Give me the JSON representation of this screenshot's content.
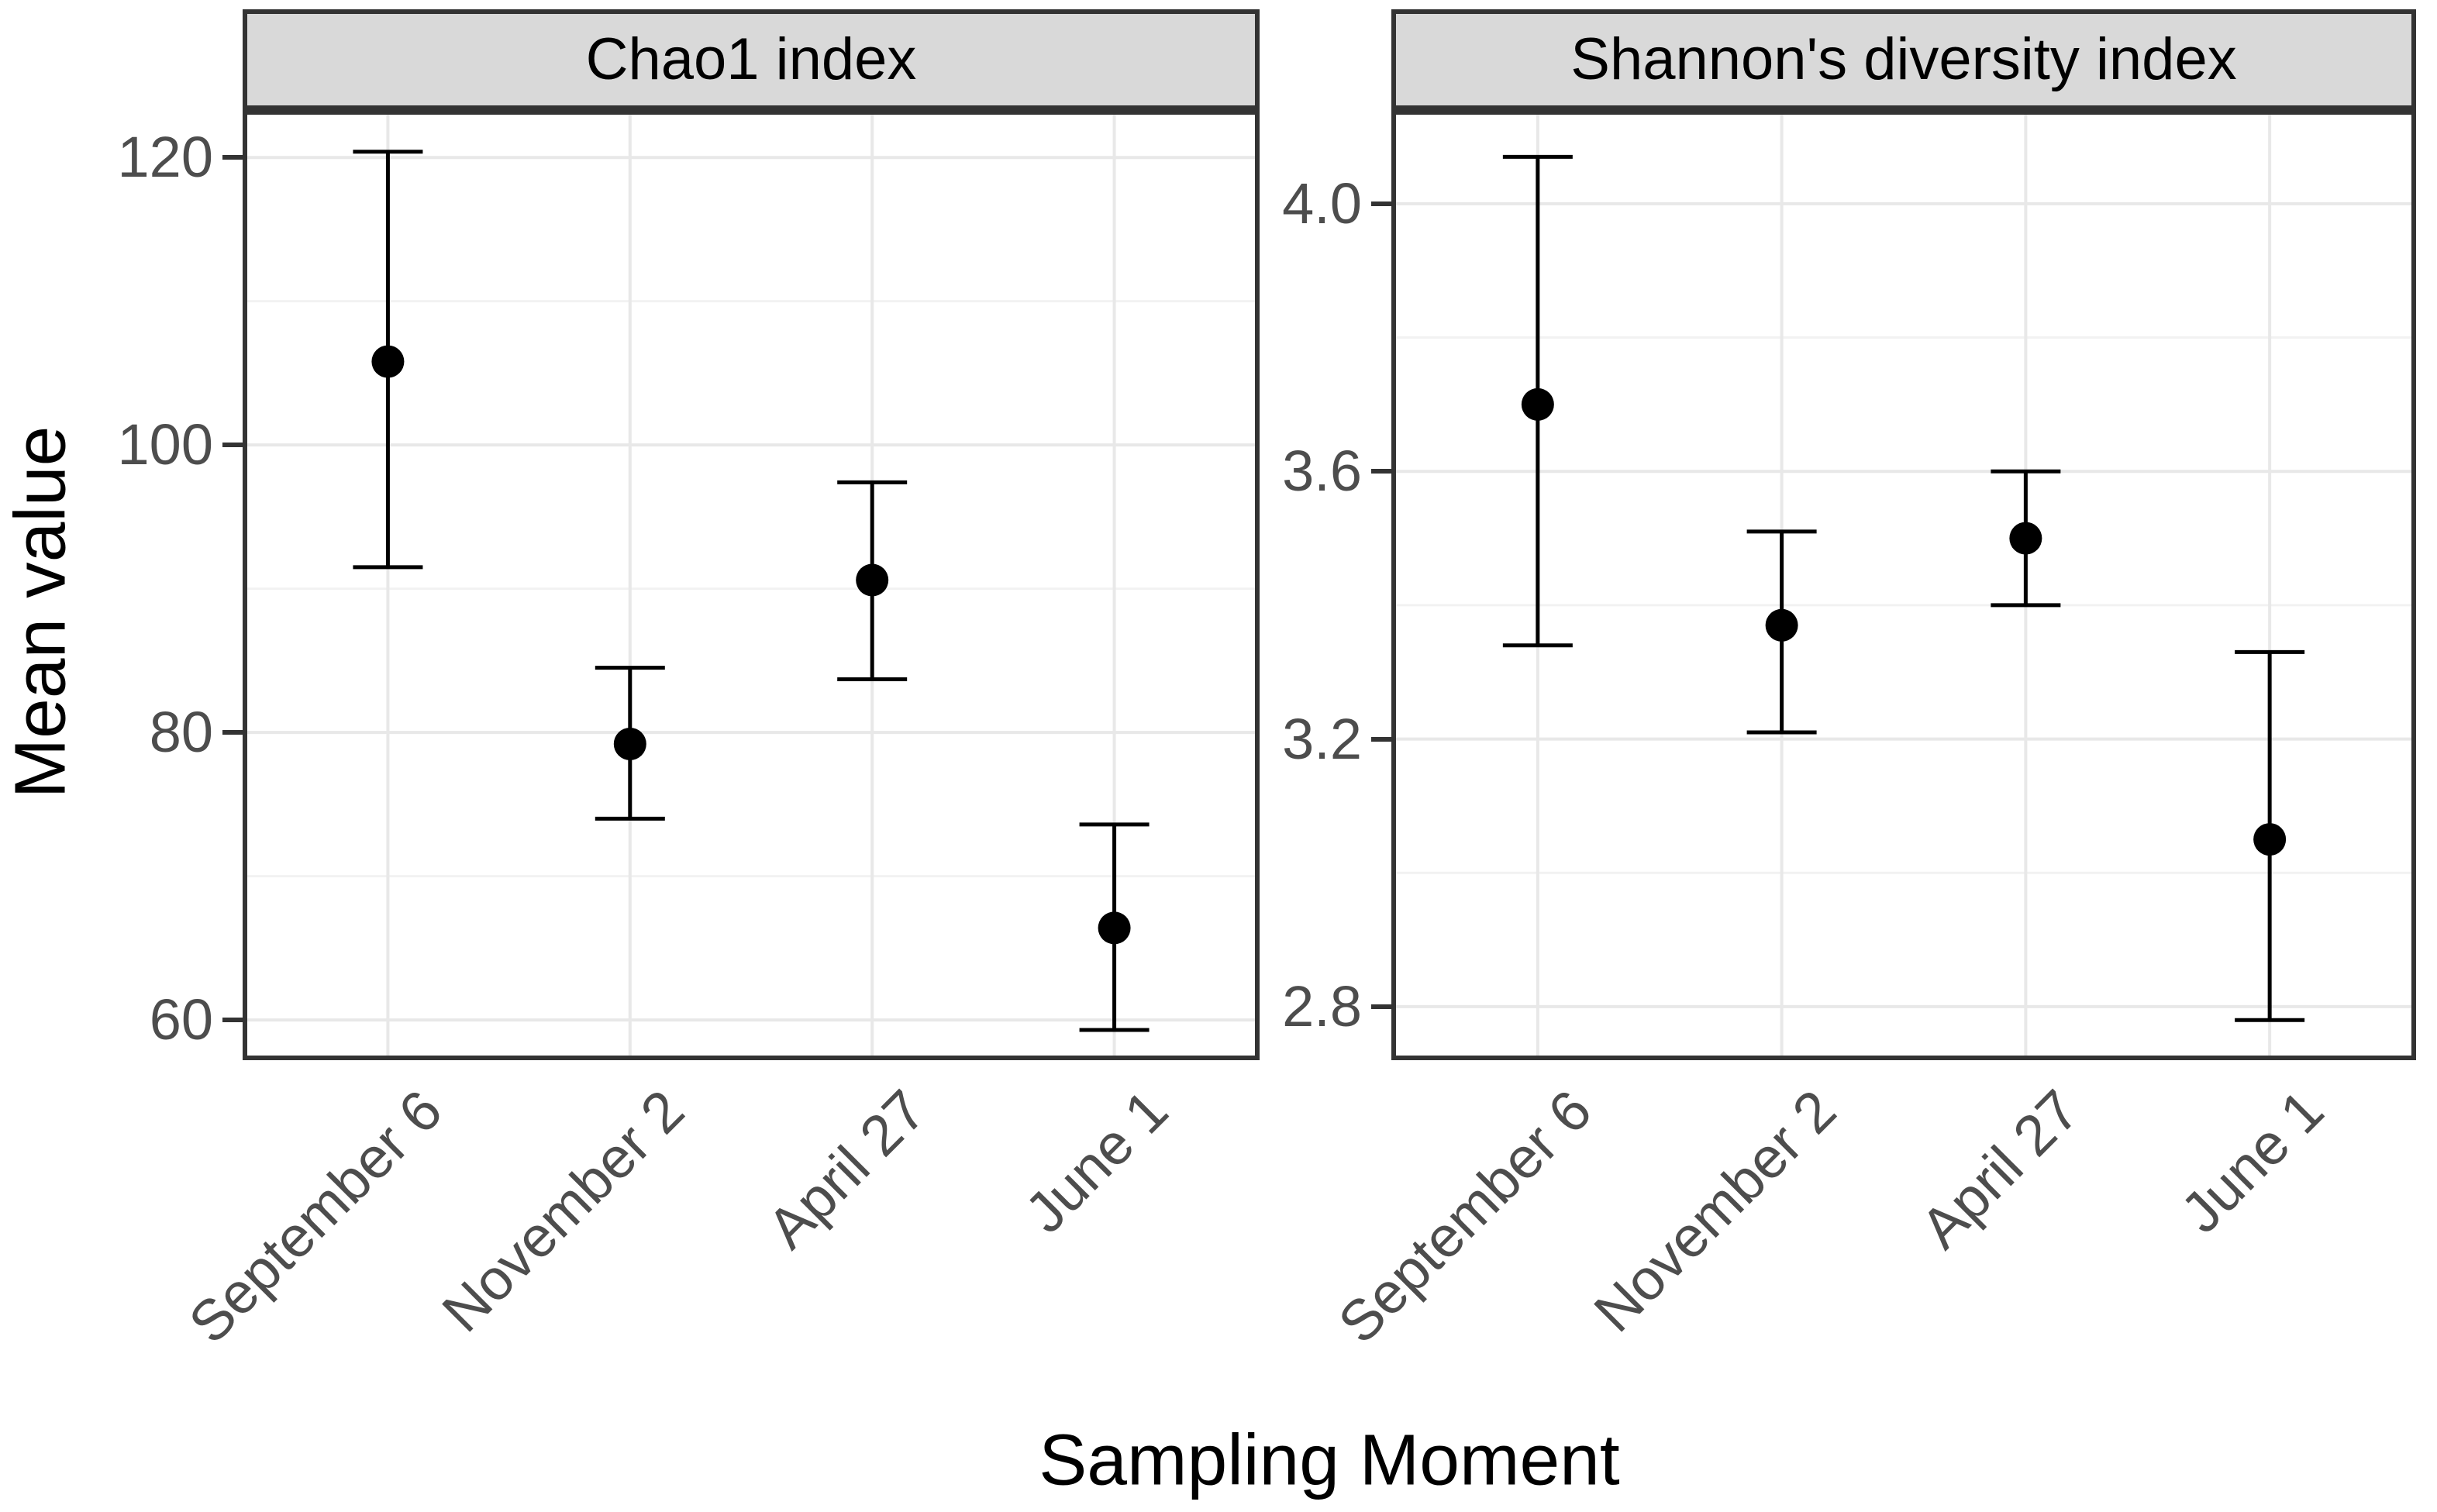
{
  "figure": {
    "y_axis_title": "Mean value",
    "x_axis_title": "Sampling Moment"
  },
  "colors": {
    "strip_bg": "#D9D9D9",
    "panel_border": "#333333",
    "grid_major": "#E8E8E8",
    "grid_minor": "#F2F2F2",
    "axis_text": "#4D4D4D",
    "marker": "#000000",
    "title_text": "#000000"
  },
  "chart_data": {
    "type": "scatter",
    "subtype": "mean-points-with-errorbars, two facets",
    "title": "",
    "xlabel": "Sampling Moment",
    "ylabel": "Mean value",
    "categories": [
      "September 6",
      "November 2",
      "April 27",
      "June 1"
    ],
    "legend": "none",
    "grid": true,
    "x_tick_angle": 45,
    "facets": [
      {
        "label": "Chao1 index",
        "ylim": [
          57.2,
          123.3
        ],
        "y_tick_values": [
          60,
          80,
          100,
          120
        ],
        "y_tick_labels": [
          "60",
          "80",
          "100",
          "120"
        ],
        "y_minor_values": [
          70,
          90,
          110
        ],
        "points": [
          {
            "category": "September 6",
            "mean": 105.8,
            "lower": 91.5,
            "upper": 120.4
          },
          {
            "category": "November 2",
            "mean": 79.2,
            "lower": 74.0,
            "upper": 84.5
          },
          {
            "category": "April 27",
            "mean": 90.6,
            "lower": 83.7,
            "upper": 97.4
          },
          {
            "category": "June 1",
            "mean": 66.4,
            "lower": 59.3,
            "upper": 73.6
          }
        ]
      },
      {
        "label": "Shannon's diversity index",
        "ylim": [
          2.72,
          4.14
        ],
        "y_tick_values": [
          2.8,
          3.2,
          3.6,
          4.0
        ],
        "y_tick_labels": [
          "2.8",
          "3.2",
          "3.6",
          "4.0"
        ],
        "y_minor_values": [
          3.0,
          3.4,
          3.8
        ],
        "points": [
          {
            "category": "September 6",
            "mean": 3.7,
            "lower": 3.34,
            "upper": 4.07
          },
          {
            "category": "November 2",
            "mean": 3.37,
            "lower": 3.21,
            "upper": 3.51
          },
          {
            "category": "April 27",
            "mean": 3.5,
            "lower": 3.4,
            "upper": 3.6
          },
          {
            "category": "June 1",
            "mean": 3.05,
            "lower": 2.78,
            "upper": 3.33
          }
        ]
      }
    ]
  }
}
